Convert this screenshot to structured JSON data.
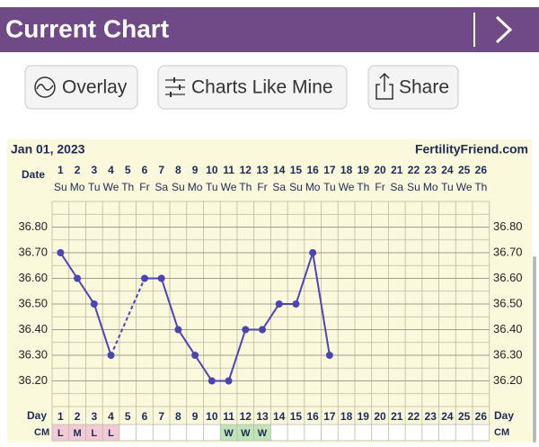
{
  "header": {
    "title": "Current Chart"
  },
  "buttons": [
    "Overlay",
    "Charts Like Mine",
    "Share"
  ],
  "chart_data": {
    "type": "line",
    "date": "Jan 01, 2023",
    "site": "FertilityFriend.com",
    "date_label": "Date",
    "day_label": "Day",
    "cm_label": "CM",
    "categories": [
      "1",
      "2",
      "3",
      "4",
      "5",
      "6",
      "7",
      "8",
      "9",
      "10",
      "11",
      "12",
      "13",
      "14",
      "15",
      "16",
      "17",
      "18",
      "19",
      "20",
      "21",
      "22",
      "23",
      "24",
      "25",
      "26"
    ],
    "weekdays": [
      "Su",
      "Mo",
      "Tu",
      "We",
      "Th",
      "Fr",
      "Sa",
      "Su",
      "Mo",
      "Tu",
      "We",
      "Th",
      "Fr",
      "Sa",
      "Su",
      "Mo",
      "Tu",
      "We",
      "Th",
      "Fr",
      "Sa",
      "Su",
      "Mo",
      "Tu",
      "We",
      "Th"
    ],
    "series": [
      {
        "color": "#4b44b6",
        "values": [
          36.7,
          36.6,
          36.5,
          36.3,
          null,
          36.6,
          36.6,
          36.4,
          36.3,
          36.2,
          36.2,
          36.4,
          36.4,
          36.5,
          36.5,
          36.7,
          36.3,
          null,
          null,
          null,
          null,
          null,
          null,
          null,
          null,
          null
        ]
      }
    ],
    "cm": [
      "L",
      "M",
      "L",
      "L",
      null,
      null,
      null,
      null,
      null,
      null,
      "W",
      "W",
      "W",
      null,
      null,
      null,
      null,
      null,
      null,
      null,
      null,
      null,
      null,
      null,
      null,
      null
    ],
    "cm_colors": {
      "L": "#f2c9d6",
      "M": "#f2c9d6",
      "W": "#bfe4b8"
    },
    "ylim": [
      36.1,
      36.9
    ],
    "yticks": [
      {
        "value": 36.2,
        "label": "36.20"
      },
      {
        "value": 36.3,
        "label": "36.30"
      },
      {
        "value": 36.4,
        "label": "36.40"
      },
      {
        "value": 36.5,
        "label": "36.50"
      },
      {
        "value": 36.6,
        "label": "36.60"
      },
      {
        "value": 36.7,
        "label": "36.70"
      },
      {
        "value": 36.8,
        "label": "36.80"
      }
    ],
    "grid": true
  }
}
